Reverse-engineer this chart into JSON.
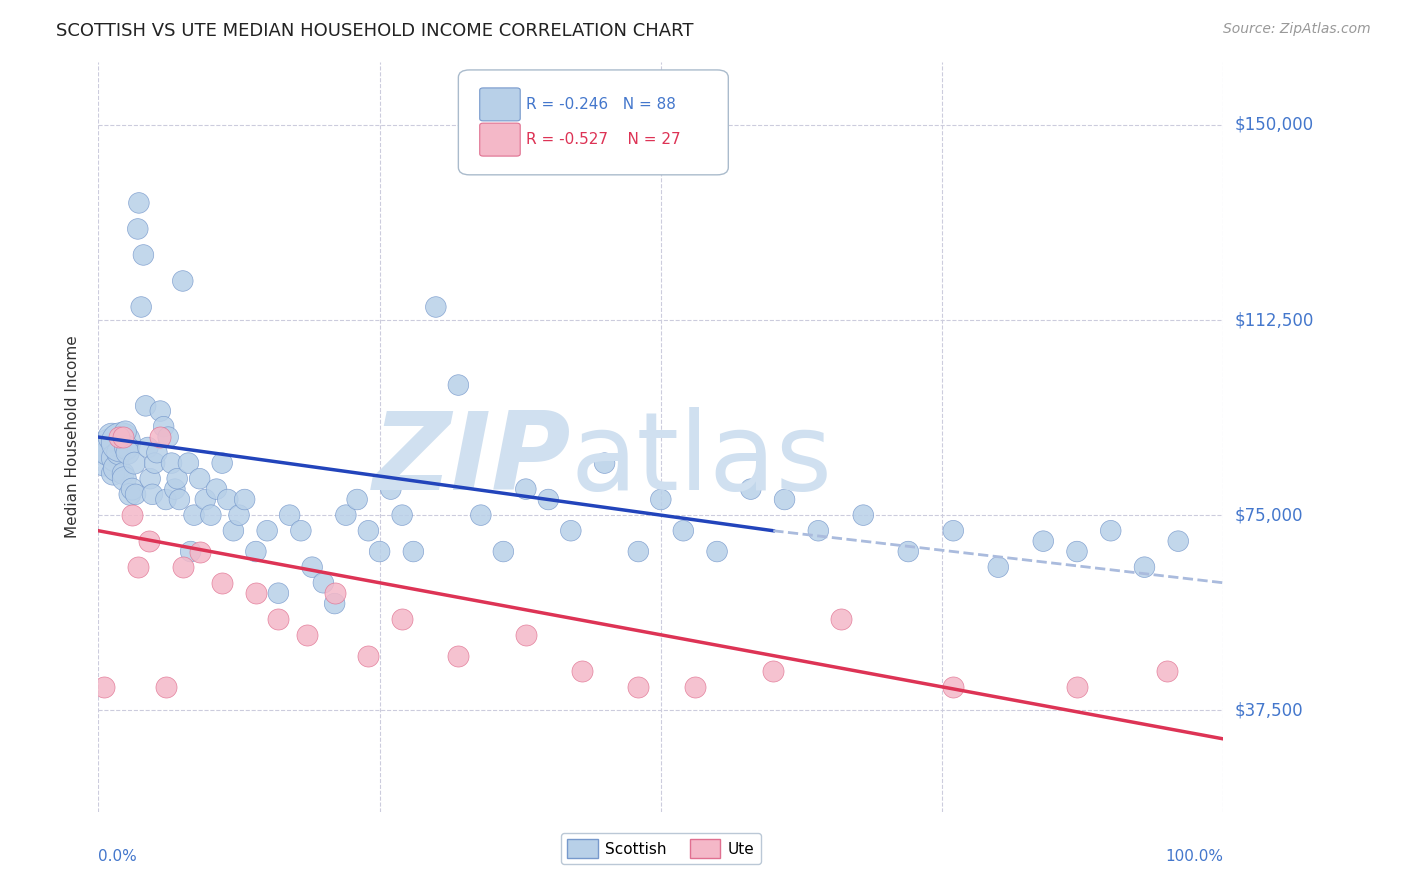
{
  "title": "SCOTTISH VS UTE MEDIAN HOUSEHOLD INCOME CORRELATION CHART",
  "source": "Source: ZipAtlas.com",
  "ylabel": "Median Household Income",
  "ytick_labels": [
    "$37,500",
    "$75,000",
    "$112,500",
    "$150,000"
  ],
  "ytick_values": [
    37500,
    75000,
    112500,
    150000
  ],
  "ymin": 18000,
  "ymax": 162000,
  "xmin": 0.0,
  "xmax": 1.0,
  "scottish_color": "#b8d0e8",
  "scottish_edge": "#7799cc",
  "ute_color": "#f4b8c8",
  "ute_edge": "#e07090",
  "trendline_scottish_color": "#2244bb",
  "trendline_ute_color": "#dd3355",
  "trendline_scottish_dashed_color": "#aabbdd",
  "watermark_color": "#d0e0f0",
  "R_scottish": -0.246,
  "N_scottish": 88,
  "R_ute": -0.527,
  "N_ute": 27,
  "scottish_x": [
    0.005,
    0.008,
    0.01,
    0.012,
    0.013,
    0.015,
    0.016,
    0.018,
    0.02,
    0.022,
    0.023,
    0.024,
    0.025,
    0.026,
    0.028,
    0.03,
    0.032,
    0.033,
    0.035,
    0.036,
    0.038,
    0.04,
    0.042,
    0.044,
    0.046,
    0.048,
    0.05,
    0.052,
    0.055,
    0.058,
    0.06,
    0.062,
    0.065,
    0.068,
    0.07,
    0.072,
    0.075,
    0.08,
    0.082,
    0.085,
    0.09,
    0.095,
    0.1,
    0.105,
    0.11,
    0.115,
    0.12,
    0.125,
    0.13,
    0.14,
    0.15,
    0.16,
    0.17,
    0.18,
    0.19,
    0.2,
    0.21,
    0.22,
    0.23,
    0.24,
    0.25,
    0.26,
    0.27,
    0.28,
    0.3,
    0.32,
    0.34,
    0.36,
    0.38,
    0.4,
    0.42,
    0.45,
    0.48,
    0.5,
    0.52,
    0.55,
    0.58,
    0.61,
    0.64,
    0.68,
    0.72,
    0.76,
    0.8,
    0.84,
    0.87,
    0.9,
    0.93,
    0.96
  ],
  "scottish_y": [
    85000,
    87000,
    88000,
    90000,
    83000,
    86000,
    84000,
    87000,
    89000,
    83000,
    82000,
    91000,
    88000,
    87000,
    79000,
    80000,
    85000,
    79000,
    130000,
    135000,
    115000,
    125000,
    96000,
    88000,
    82000,
    79000,
    85000,
    87000,
    95000,
    92000,
    78000,
    90000,
    85000,
    80000,
    82000,
    78000,
    120000,
    85000,
    68000,
    75000,
    82000,
    78000,
    75000,
    80000,
    85000,
    78000,
    72000,
    75000,
    78000,
    68000,
    72000,
    60000,
    75000,
    72000,
    65000,
    62000,
    58000,
    75000,
    78000,
    72000,
    68000,
    80000,
    75000,
    68000,
    115000,
    100000,
    75000,
    68000,
    80000,
    78000,
    72000,
    85000,
    68000,
    78000,
    72000,
    68000,
    80000,
    78000,
    72000,
    75000,
    68000,
    72000,
    65000,
    70000,
    68000,
    72000,
    65000,
    70000
  ],
  "scottish_sizes": [
    350,
    300,
    700,
    400,
    280,
    400,
    350,
    300,
    800,
    250,
    300,
    250,
    300,
    280,
    250,
    250,
    250,
    220,
    220,
    220,
    220,
    220,
    220,
    220,
    220,
    220,
    220,
    220,
    220,
    220,
    220,
    220,
    220,
    220,
    220,
    220,
    220,
    220,
    220,
    220,
    220,
    220,
    220,
    220,
    220,
    220,
    220,
    220,
    220,
    220,
    220,
    220,
    220,
    220,
    220,
    220,
    220,
    220,
    220,
    220,
    220,
    220,
    220,
    220,
    220,
    220,
    220,
    220,
    220,
    220,
    220,
    220,
    220,
    220,
    220,
    220,
    220,
    220,
    220,
    220,
    220,
    220,
    220,
    220,
    220,
    220,
    220,
    220
  ],
  "ute_x": [
    0.005,
    0.018,
    0.022,
    0.03,
    0.035,
    0.045,
    0.055,
    0.06,
    0.075,
    0.09,
    0.11,
    0.14,
    0.16,
    0.185,
    0.21,
    0.24,
    0.27,
    0.32,
    0.38,
    0.43,
    0.48,
    0.53,
    0.6,
    0.66,
    0.76,
    0.87,
    0.95
  ],
  "ute_y": [
    42000,
    90000,
    90000,
    75000,
    65000,
    70000,
    90000,
    42000,
    65000,
    68000,
    62000,
    60000,
    55000,
    52000,
    60000,
    48000,
    55000,
    48000,
    52000,
    45000,
    42000,
    42000,
    45000,
    55000,
    42000,
    42000,
    45000
  ],
  "background_color": "#ffffff",
  "grid_color": "#ccccdd",
  "axis_label_color": "#4477cc",
  "trendline_solid_end": 0.6
}
